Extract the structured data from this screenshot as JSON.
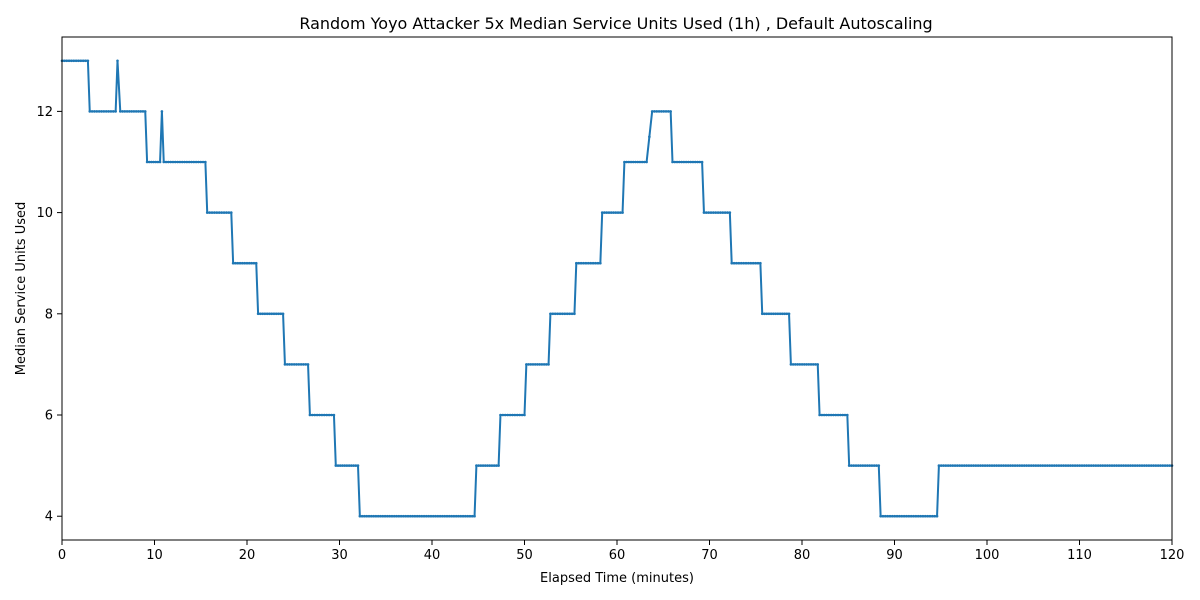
{
  "chart_data": {
    "type": "line",
    "title": "Random Yoyo Attacker 5x Median Service Units Used (1h) , Default Autoscaling",
    "xlabel": "Elapsed Time (minutes)",
    "ylabel": "Median Service Units Used",
    "xlim": [
      0,
      120
    ],
    "ylim": [
      3.53,
      13.47
    ],
    "xticks": [
      0,
      10,
      20,
      30,
      40,
      50,
      60,
      70,
      80,
      90,
      100,
      110,
      120
    ],
    "yticks": [
      4,
      6,
      8,
      10,
      12
    ],
    "grid": false,
    "series_color": "#1f77b4",
    "series": [
      {
        "x": [
          0,
          2.8,
          3.0,
          5.8,
          6.0,
          6.3,
          9.0,
          9.2,
          10.6,
          10.8,
          11.0,
          15.5,
          15.7,
          18.3,
          18.5,
          21.0,
          21.2,
          23.9,
          24.1,
          26.6,
          26.8,
          29.4,
          29.6,
          32.0,
          32.2,
          44.6,
          44.8,
          47.2,
          47.4,
          50.0,
          50.2,
          52.6,
          52.8,
          55.4,
          55.6,
          58.2,
          58.4,
          60.6,
          60.8,
          63.2,
          63.8,
          65.8,
          66.0,
          69.2,
          69.4,
          72.2,
          72.4,
          75.5,
          75.7,
          78.6,
          78.8,
          81.7,
          81.9,
          84.9,
          85.1,
          88.3,
          88.5,
          94.6,
          94.8,
          120
        ],
        "y": [
          13,
          13,
          12,
          12,
          13,
          12,
          12,
          11,
          11,
          12,
          11,
          11,
          10,
          10,
          9,
          9,
          8,
          8,
          7,
          7,
          6,
          6,
          5,
          5,
          4,
          4,
          5,
          5,
          6,
          6,
          7,
          7,
          8,
          8,
          9,
          9,
          10,
          10,
          11,
          11,
          12,
          12,
          11,
          11,
          10,
          10,
          9,
          9,
          8,
          8,
          7,
          7,
          6,
          6,
          5,
          5,
          4,
          4,
          5,
          5
        ]
      }
    ]
  }
}
